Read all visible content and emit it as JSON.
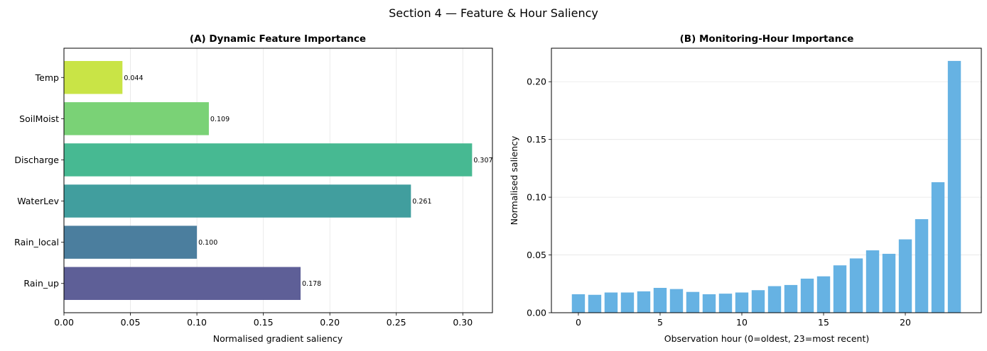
{
  "figure": {
    "title": "Section 4 — Feature & Hour Saliency"
  },
  "chart_data": [
    {
      "type": "bar",
      "orientation": "horizontal",
      "title": "(A) Dynamic Feature Importance",
      "xlabel": "Normalised gradient saliency",
      "ylabel": "",
      "categories": [
        "Rain_up",
        "Rain_local",
        "WaterLev",
        "Discharge",
        "SoilMoist",
        "Temp"
      ],
      "values": [
        0.178,
        0.1,
        0.261,
        0.307,
        0.109,
        0.044
      ],
      "data_labels": [
        "0.178",
        "0.100",
        "0.261",
        "0.307",
        "0.109",
        "0.044"
      ],
      "colors": [
        "#5e5f97",
        "#4b7e9e",
        "#419e9e",
        "#47b992",
        "#7ad276",
        "#c9e446"
      ],
      "xlim": [
        0,
        0.3223
      ],
      "xticks": [
        0,
        0.05,
        0.1,
        0.15,
        0.2,
        0.25,
        0.3
      ],
      "xtick_labels": [
        "0.00",
        "0.05",
        "0.10",
        "0.15",
        "0.20",
        "0.25",
        "0.30"
      ],
      "grid": "x"
    },
    {
      "type": "bar",
      "title": "(B) Monitoring-Hour Importance",
      "xlabel": "Observation hour (0=oldest, 23=most recent)",
      "ylabel": "Normalised saliency",
      "x": [
        0,
        1,
        2,
        3,
        4,
        5,
        6,
        7,
        8,
        9,
        10,
        11,
        12,
        13,
        14,
        15,
        16,
        17,
        18,
        19,
        20,
        21,
        22,
        23
      ],
      "values": [
        0.016,
        0.0155,
        0.0175,
        0.0175,
        0.0185,
        0.0215,
        0.0205,
        0.018,
        0.016,
        0.0165,
        0.0175,
        0.0195,
        0.023,
        0.024,
        0.0295,
        0.0315,
        0.041,
        0.047,
        0.054,
        0.051,
        0.0635,
        0.081,
        0.113,
        0.218
      ],
      "color": "#66b2e3",
      "xlim": [
        -1.65,
        24.65
      ],
      "ylim": [
        0,
        0.229
      ],
      "xticks": [
        0,
        5,
        10,
        15,
        20
      ],
      "xtick_labels": [
        "0",
        "5",
        "10",
        "15",
        "20"
      ],
      "yticks": [
        0,
        0.05,
        0.1,
        0.15,
        0.2
      ],
      "ytick_labels": [
        "0.00",
        "0.05",
        "0.10",
        "0.15",
        "0.20"
      ],
      "grid": "y"
    }
  ]
}
